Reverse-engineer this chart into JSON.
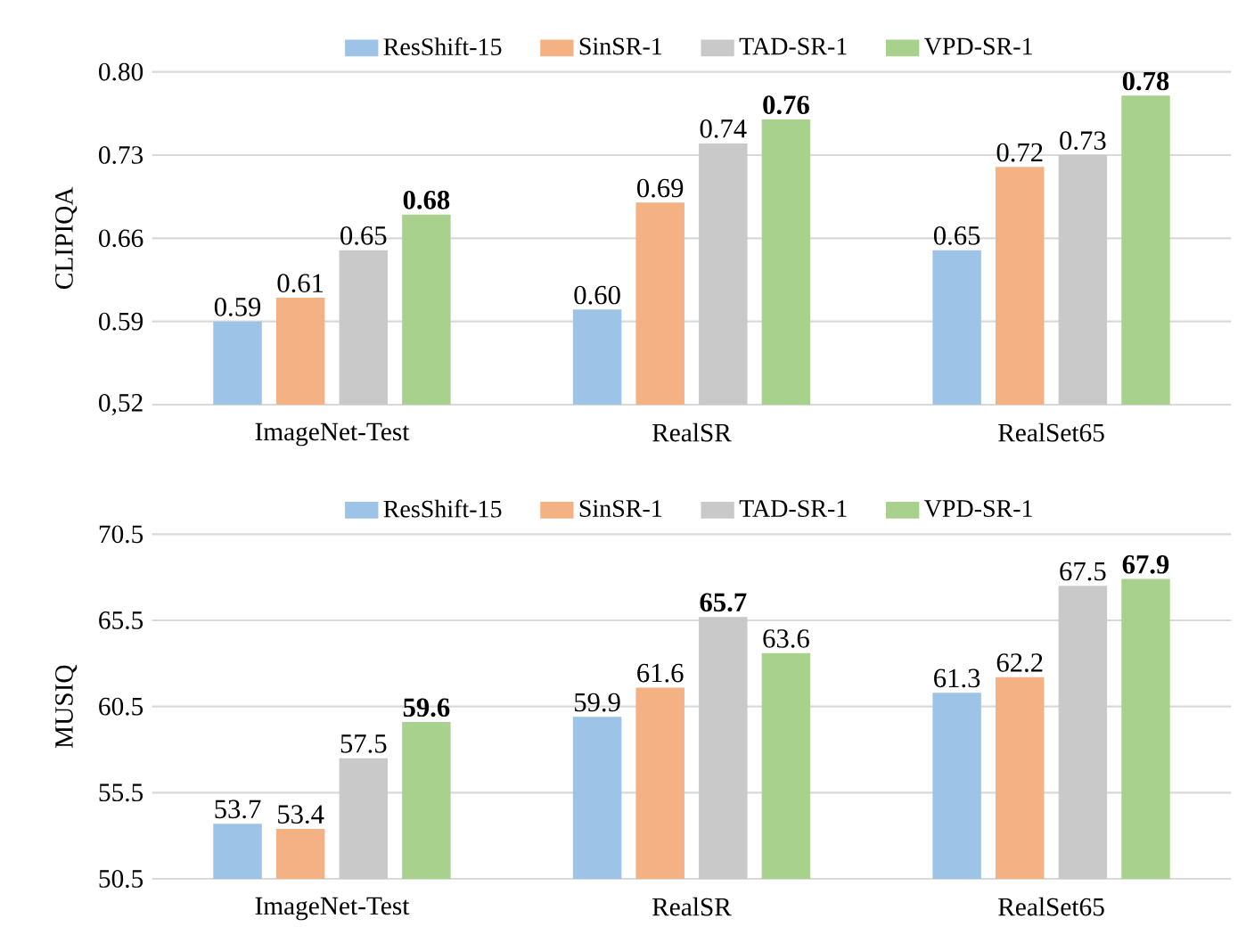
{
  "chart_data": [
    {
      "type": "bar",
      "ylabel": "CLIPIQA",
      "categories": [
        "ImageNet-Test",
        "RealSR",
        "RealSet65"
      ],
      "series": [
        {
          "name": "ResShift-15",
          "color": "#9dc3e6",
          "values": [
            0.59,
            0.6,
            0.65
          ],
          "value_labels": [
            "0.59",
            "0.60",
            "0.65"
          ]
        },
        {
          "name": "SinSR-1",
          "color": "#f4b183",
          "values": [
            0.61,
            0.69,
            0.72
          ],
          "value_labels": [
            "0.61",
            "0.69",
            "0.72"
          ]
        },
        {
          "name": "TAD-SR-1",
          "color": "#c9c9c9",
          "values": [
            0.65,
            0.74,
            0.73
          ],
          "value_labels": [
            "0.65",
            "0.74",
            "0.73"
          ]
        },
        {
          "name": "VPD-SR-1",
          "color": "#a9d18e",
          "values": [
            0.68,
            0.76,
            0.78
          ],
          "value_labels": [
            "**0.68**",
            "**0.76**",
            "**0.78**"
          ]
        }
      ],
      "ylim": [
        0.52,
        0.8
      ],
      "yticks": [
        {
          "value": 0.52,
          "label": "0,52"
        },
        0.59,
        0.66,
        0.73,
        {
          "value": 0.8,
          "label": "0.80"
        }
      ],
      "grid": "y",
      "legend": "top"
    },
    {
      "type": "bar",
      "ylabel": "MUSIQ",
      "categories": [
        "ImageNet-Test",
        "RealSR",
        "RealSet65"
      ],
      "series": [
        {
          "name": "ResShift-15",
          "color": "#9dc3e6",
          "values": [
            53.7,
            59.9,
            61.3
          ],
          "value_labels": [
            "53.7",
            "59.9",
            "61.3"
          ]
        },
        {
          "name": "SinSR-1",
          "color": "#f4b183",
          "values": [
            53.4,
            61.6,
            62.2
          ],
          "value_labels": [
            "53.4",
            "61.6",
            "62.2"
          ]
        },
        {
          "name": "TAD-SR-1",
          "color": "#c9c9c9",
          "values": [
            57.5,
            65.7,
            67.5
          ],
          "value_labels": [
            "57.5",
            "**65.7**",
            "67.5"
          ]
        },
        {
          "name": "VPD-SR-1",
          "color": "#a9d18e",
          "values": [
            59.6,
            63.6,
            67.9
          ],
          "value_labels": [
            "**59.6**",
            "63.6",
            "**67.9**"
          ]
        }
      ],
      "ylim": [
        50.5,
        70.5
      ],
      "yticks": [
        50.5,
        55.5,
        60.5,
        65.5,
        70.5
      ],
      "grid": "y",
      "legend": "top"
    }
  ]
}
